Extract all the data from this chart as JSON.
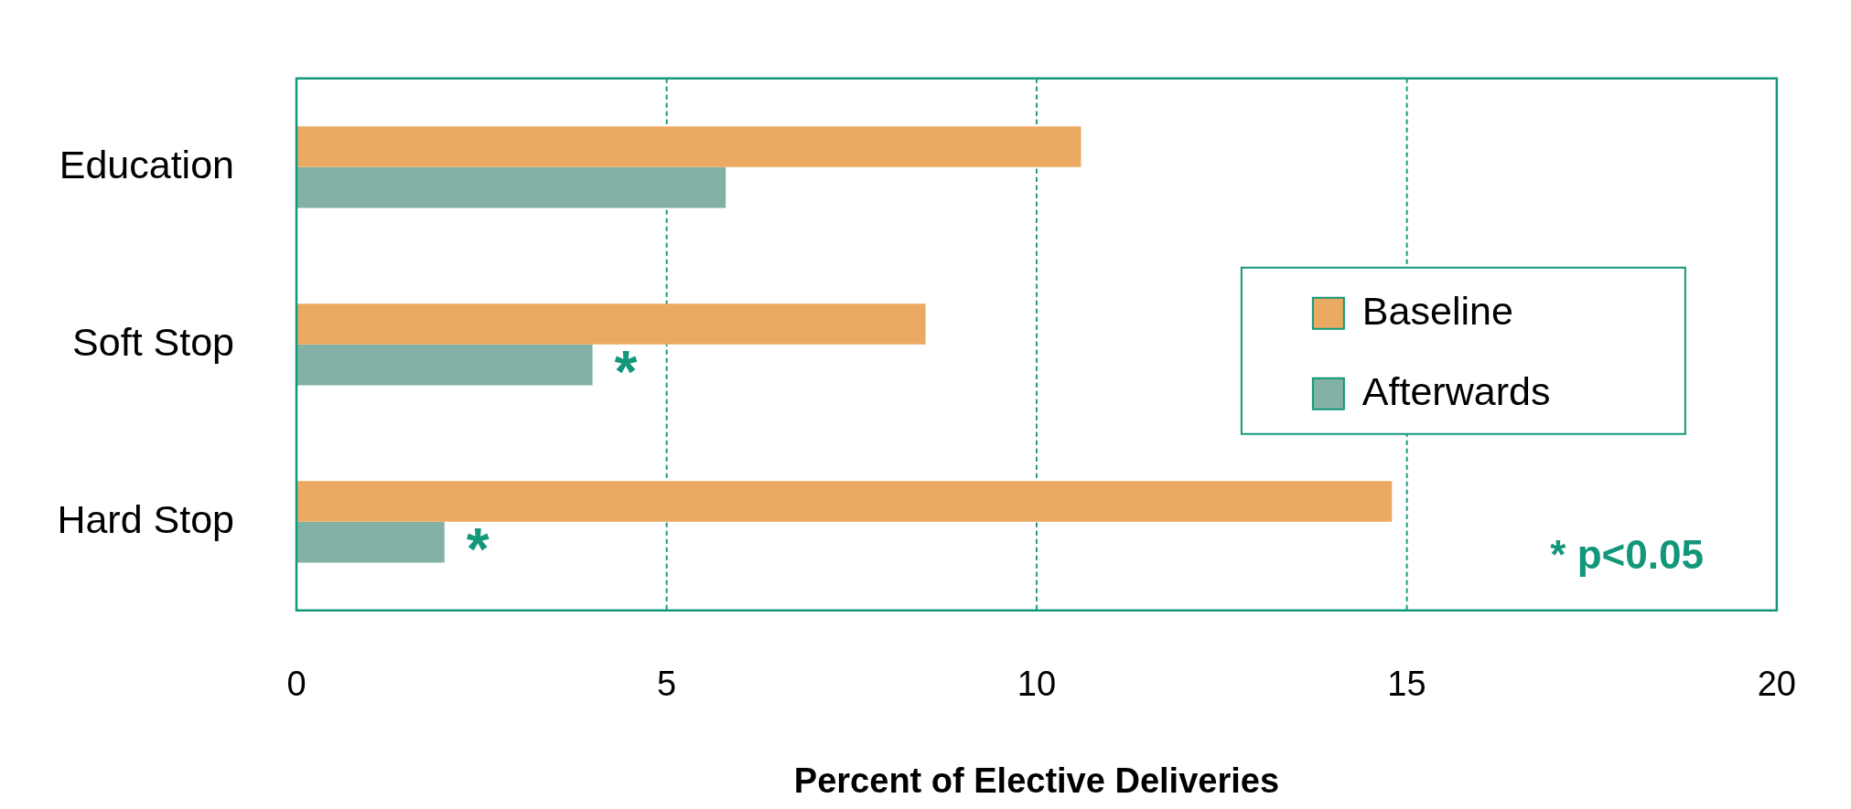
{
  "chart_data": {
    "type": "bar",
    "orientation": "horizontal",
    "xlabel": "Percent of Elective Deliveries",
    "categories": [
      "Education",
      "Soft Stop",
      "Hard Stop"
    ],
    "series": [
      {
        "name": "Baseline",
        "color": "#ebaa62",
        "values": [
          10.6,
          8.5,
          14.8
        ]
      },
      {
        "name": "Afterwards",
        "color": "#83b1a6",
        "values": [
          5.8,
          4.0,
          2.0
        ]
      }
    ],
    "xlim": [
      0,
      20
    ],
    "xticks": [
      0,
      5,
      10,
      15,
      20
    ],
    "grid": "x",
    "legend": "right",
    "annotations": [
      {
        "text": "*",
        "x": 4.0,
        "y": "Soft Stop"
      },
      {
        "text": "*",
        "x": 2.0,
        "y": "Hard Stop"
      },
      "* p<0.05"
    ]
  }
}
